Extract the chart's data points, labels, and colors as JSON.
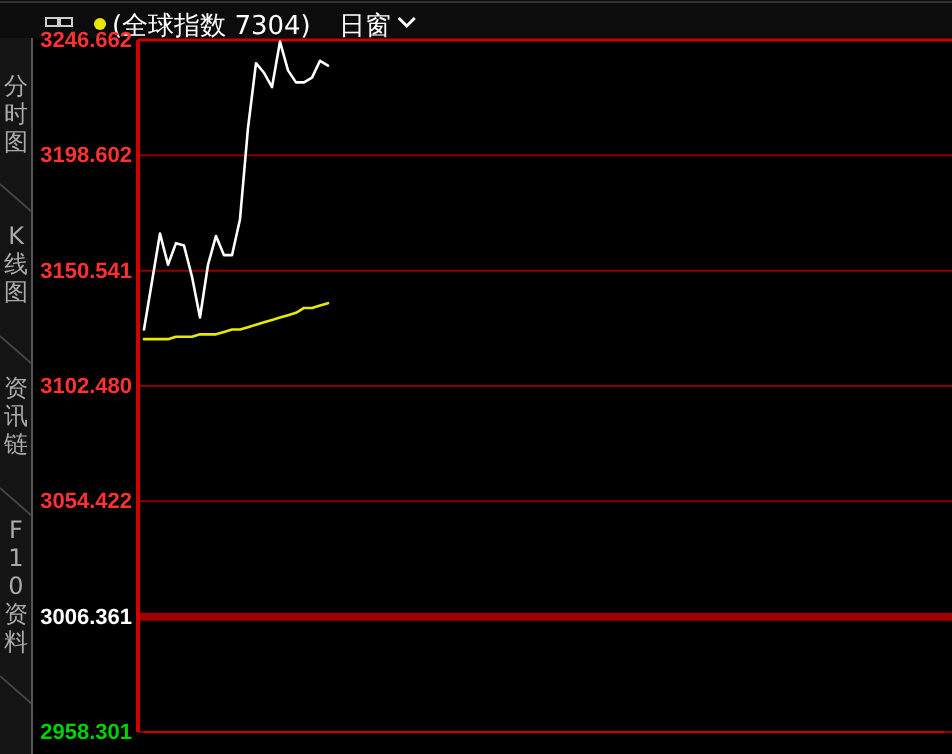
{
  "chart_data": {
    "type": "line",
    "title": "(全球指数 7304)",
    "annotations": [
      "日窗",
      "分时图",
      "K线图",
      "资讯链",
      "F10资料"
    ],
    "categories": [
      null,
      null,
      null,
      null,
      null,
      null,
      null,
      null,
      null,
      null,
      null,
      null,
      null,
      null,
      null,
      null,
      null,
      null,
      null,
      null,
      null,
      null,
      null,
      null,
      null,
      null,
      null,
      null,
      null,
      null,
      null,
      null,
      null,
      null,
      null,
      null,
      null,
      null,
      null,
      null,
      null,
      null,
      null,
      null,
      null,
      null,
      null,
      null,
      null,
      null,
      null,
      null,
      null,
      null,
      null,
      null,
      null,
      null,
      null,
      null,
      null,
      null,
      null,
      null,
      null,
      null,
      null,
      null,
      null,
      null,
      null,
      null,
      null,
      null,
      null,
      null,
      null,
      null,
      null,
      null,
      null,
      null,
      null,
      null,
      null,
      null,
      null,
      null,
      null,
      null,
      null,
      null,
      null,
      null,
      null,
      null,
      null,
      null,
      null,
      null,
      null
    ],
    "series": [
      {
        "color": "#ffffff",
        "values": [
          3126,
          3146,
          3166,
          3153,
          3162,
          3161,
          3148,
          3131,
          3153,
          3165,
          3157,
          3157,
          3172,
          3210,
          3237,
          3233,
          3227,
          3246,
          3234,
          3229,
          3229,
          3231,
          3238,
          3236,
          null,
          null,
          null,
          null,
          null,
          null,
          null,
          null,
          null,
          null,
          null,
          null,
          null,
          null,
          null,
          null,
          null,
          null,
          null,
          null,
          null,
          null,
          null,
          null,
          null,
          null,
          null,
          null,
          null,
          null,
          null,
          null,
          null,
          null,
          null,
          null,
          null,
          null,
          null,
          null,
          null,
          null,
          null,
          null,
          null,
          null,
          null,
          null,
          null,
          null,
          null,
          null,
          null,
          null,
          null,
          null,
          null,
          null,
          null,
          null,
          null,
          null,
          null,
          null,
          null,
          null,
          null,
          null,
          null,
          null,
          null,
          null,
          null,
          null,
          null,
          null,
          null
        ]
      },
      {
        "color": "#e8e800",
        "values": [
          3122,
          3122,
          3122,
          3122,
          3123,
          3123,
          3123,
          3124,
          3124,
          3124,
          3125,
          3126,
          3126,
          3127,
          3128,
          3129,
          3130,
          3131,
          3132,
          3133,
          3135,
          3135,
          3136,
          3137,
          null,
          null,
          null,
          null,
          null,
          null,
          null,
          null,
          null,
          null,
          null,
          null,
          null,
          null,
          null,
          null,
          null,
          null,
          null,
          null,
          null,
          null,
          null,
          null,
          null,
          null,
          null,
          null,
          null,
          null,
          null,
          null,
          null,
          null,
          null,
          null,
          null,
          null,
          null,
          null,
          null,
          null,
          null,
          null,
          null,
          null,
          null,
          null,
          null,
          null,
          null,
          null,
          null,
          null,
          null,
          null,
          null,
          null,
          null,
          null,
          null,
          null,
          null,
          null,
          null,
          null,
          null,
          null,
          null,
          null,
          null,
          null,
          null,
          null,
          null,
          null,
          null
        ]
      }
    ],
    "ylim": [
      2958.301,
      3246.662
    ],
    "yticks": [
      2958.301,
      3006.361,
      3054.422,
      {
        "value": 3102.48,
        "label": "3102.480"
      },
      3150.541,
      3198.602,
      3246.662
    ],
    "ref_lines": [
      {
        "axis": "y",
        "value": 3006.361,
        "color": "#a00000"
      }
    ],
    "grid": "y",
    "tick_labels": "y"
  }
}
